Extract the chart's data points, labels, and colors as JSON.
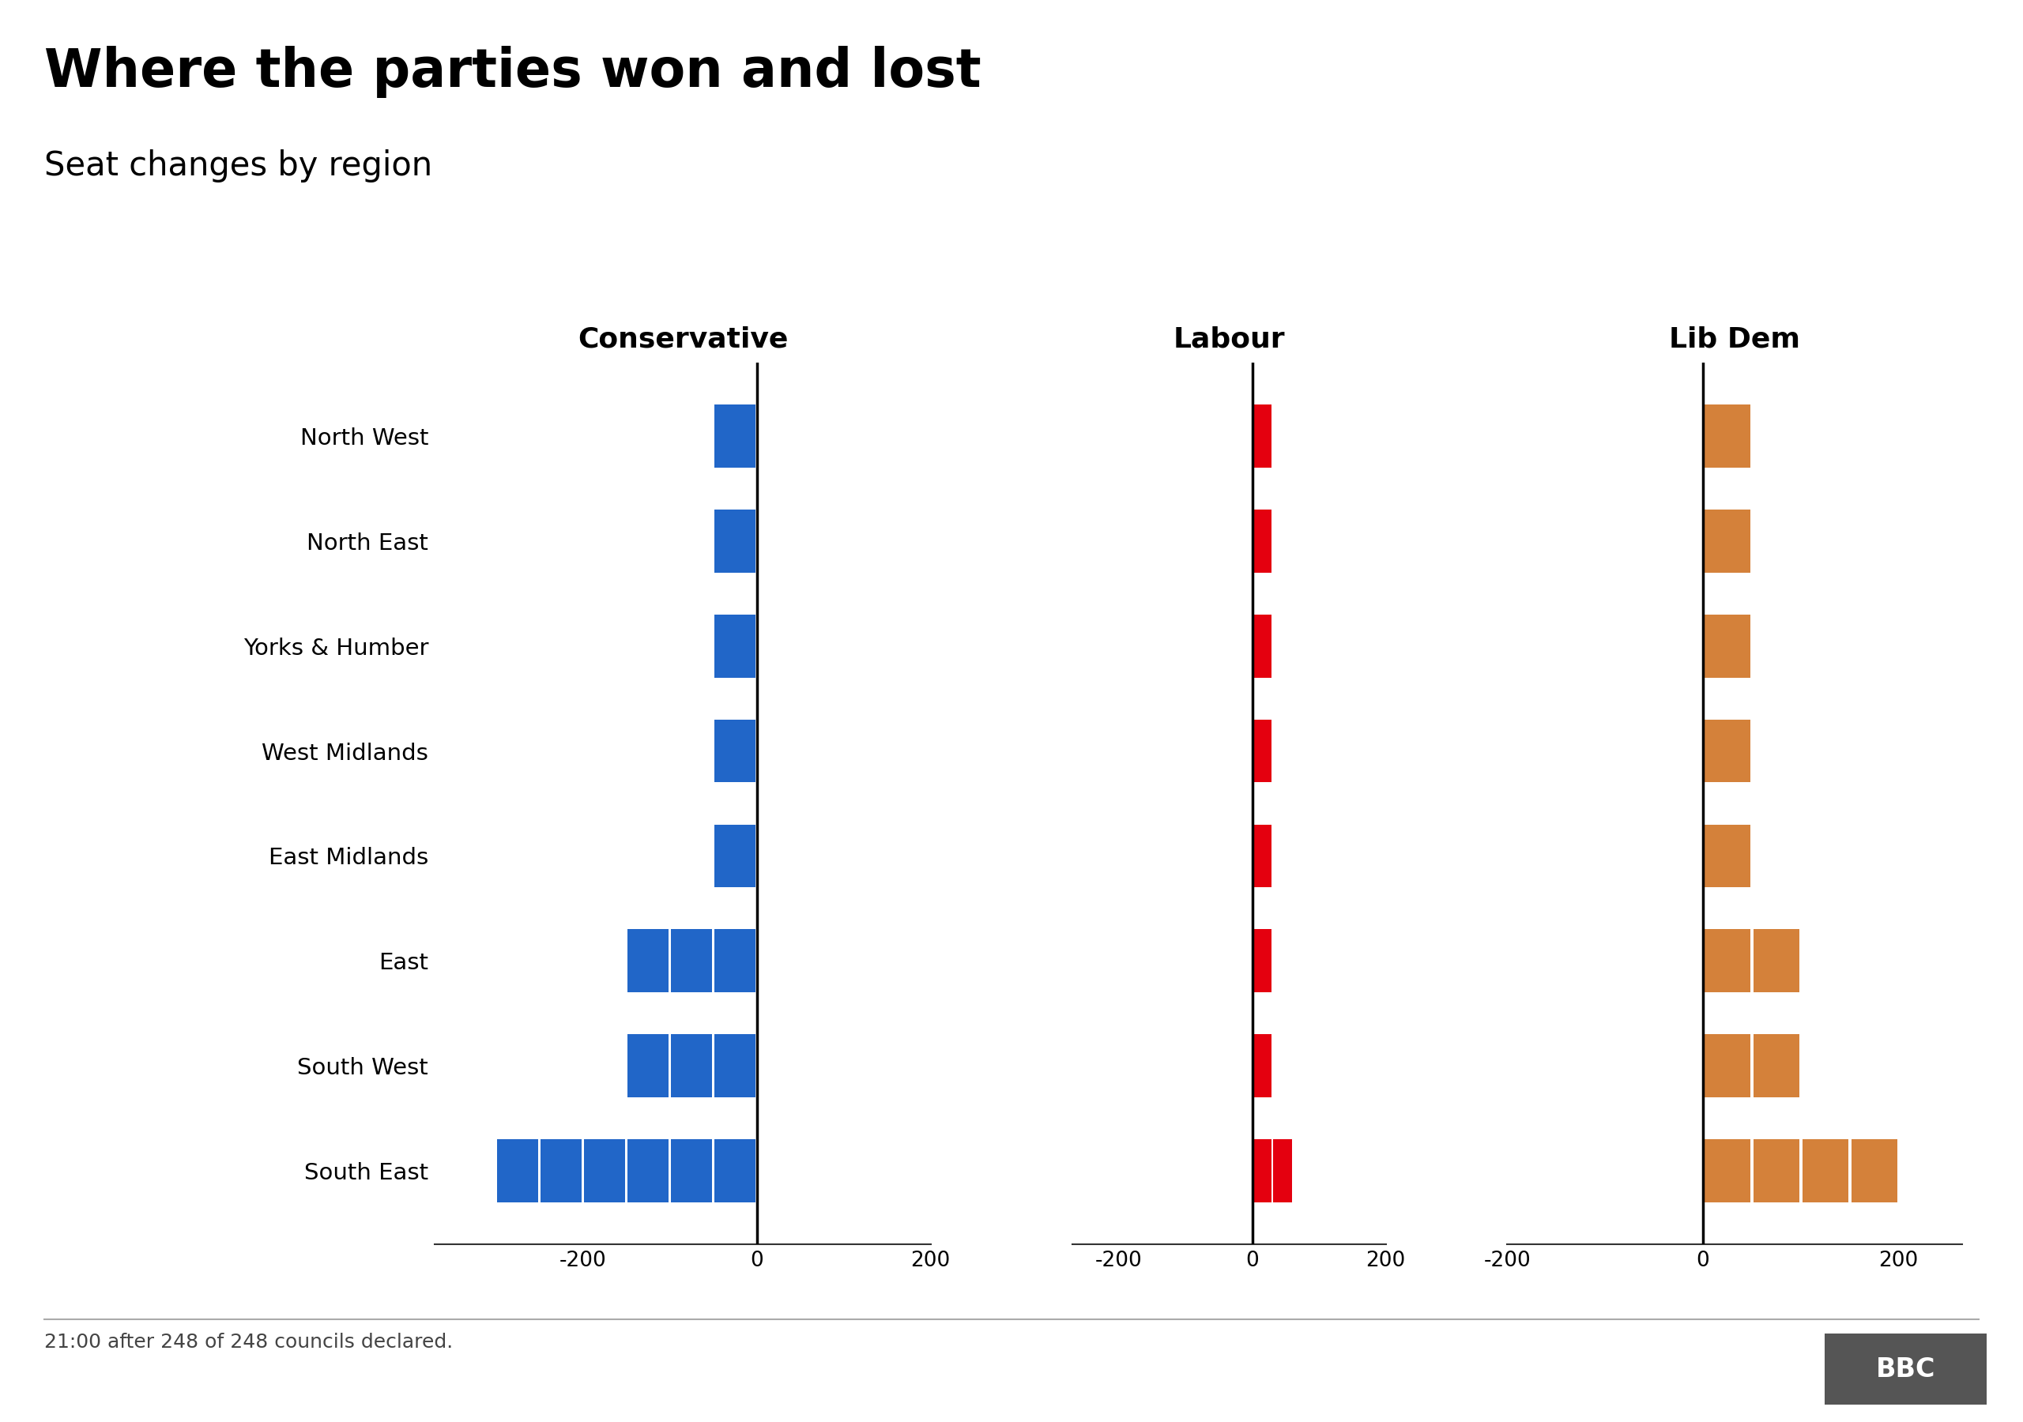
{
  "title": "Where the parties won and lost",
  "subtitle": "Seat changes by region",
  "footer": "21:00 after 248 of 248 councils declared.",
  "regions": [
    "North West",
    "North East",
    "Yorks & Humber",
    "West Midlands",
    "East Midlands",
    "East",
    "South West",
    "South East"
  ],
  "conservative": [
    -40,
    -5,
    -30,
    -50,
    -60,
    -130,
    -150,
    -320
  ],
  "labour": [
    30,
    40,
    12,
    18,
    35,
    8,
    2,
    65
  ],
  "libdem": [
    12,
    6,
    24,
    22,
    55,
    110,
    125,
    200
  ],
  "con_color": "#2166C8",
  "lab_color": "#E4000F",
  "ld_color": "#D4813A",
  "seg_size_con": 50,
  "seg_size_lab": 30,
  "seg_size_ld": 50,
  "bar_height": 0.6,
  "con_xlim": [
    -370,
    130
  ],
  "lab_xlim": [
    -270,
    200
  ],
  "ld_xlim": [
    -200,
    265
  ],
  "xticks": [
    -200,
    0,
    200
  ],
  "background_color": "#ffffff"
}
